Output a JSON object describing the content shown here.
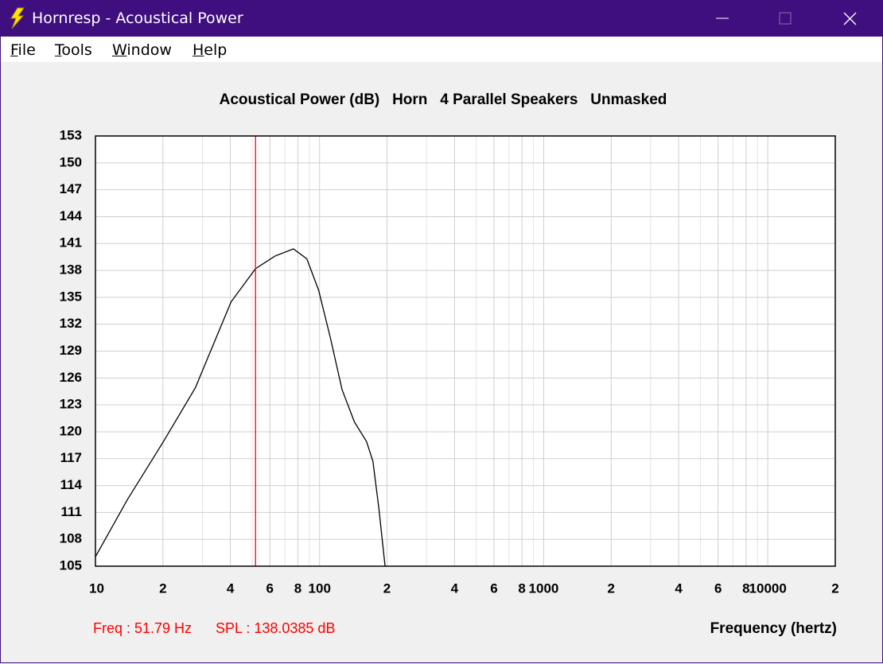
{
  "window": {
    "title": "Hornresp - Acoustical Power"
  },
  "menu": [
    "File",
    "Tools",
    "Window",
    "Help"
  ],
  "chart_data": {
    "type": "line",
    "title": "Acoustical Power (dB)   Horn   4 Parallel Speakers   Unmasked",
    "x_label": "Frequency (hertz)",
    "log_x": true,
    "grid": true,
    "color": "#000000",
    "x": [
      10,
      13.9,
      20.1,
      27.9,
      40.3,
      51.8,
      63.2,
      76.4,
      87.7,
      99.0,
      111.7,
      126,
      143,
      162,
      173,
      184,
      196
    ],
    "values": [
      106.06,
      112.45,
      118.9,
      124.9,
      134.5,
      138.2,
      139.6,
      140.4,
      139.3,
      135.8,
      130.5,
      124.7,
      121.1,
      118.9,
      116.7,
      111.4,
      105
    ],
    "xlim": [
      10,
      20000
    ],
    "ylim": [
      105,
      153
    ],
    "xticks": [
      10,
      {
        "value": 20,
        "label": "2"
      },
      {
        "value": 40,
        "label": "4"
      },
      {
        "value": 60,
        "label": "6"
      },
      {
        "value": 80,
        "label": "8"
      },
      100,
      {
        "value": 200,
        "label": "2"
      },
      {
        "value": 400,
        "label": "4"
      },
      {
        "value": 600,
        "label": "6"
      },
      {
        "value": 800,
        "label": "8"
      },
      1000,
      {
        "value": 2000,
        "label": "2"
      },
      {
        "value": 4000,
        "label": "4"
      },
      {
        "value": 6000,
        "label": "6"
      },
      {
        "value": 8000,
        "label": "8"
      },
      10000,
      {
        "value": 20000,
        "label": "2"
      }
    ],
    "minor_xticks": [
      30,
      50,
      70,
      90,
      300,
      500,
      700,
      900,
      3000,
      5000,
      7000,
      9000
    ],
    "yticks": [
      105,
      108,
      111,
      114,
      117,
      120,
      123,
      126,
      129,
      132,
      135,
      138,
      141,
      144,
      147,
      150,
      153
    ],
    "cursor": {
      "x": 51.79,
      "y": 138.0385,
      "color": "#ff0000",
      "freq_label": "Freq : 51.79 Hz",
      "spl_label": "SPL : 138.0385 dB"
    }
  }
}
